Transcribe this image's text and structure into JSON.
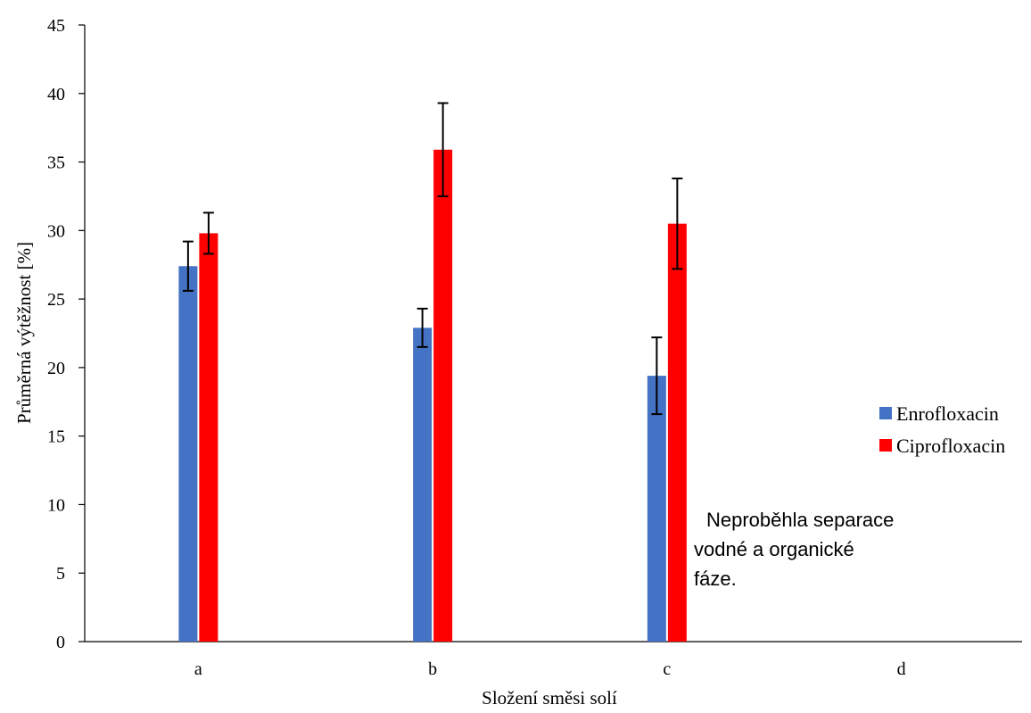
{
  "chart_data": {
    "type": "bar",
    "title": "",
    "xlabel": "Složení směsi solí",
    "ylabel": "Průměrná výtěžnost [%]",
    "ylim": [
      0,
      45
    ],
    "yticks": [
      0,
      5,
      10,
      15,
      20,
      25,
      30,
      35,
      40,
      45
    ],
    "categories": [
      "a",
      "b",
      "c",
      "d"
    ],
    "series": [
      {
        "name": "Enrofloxacin",
        "color": "#4472c4",
        "values": [
          27.4,
          22.9,
          19.4,
          0
        ],
        "errors": [
          1.8,
          1.4,
          2.8,
          0
        ]
      },
      {
        "name": "Ciprofloxacin",
        "color": "#ff0000",
        "values": [
          29.8,
          35.9,
          30.5,
          0
        ],
        "errors": [
          1.5,
          3.4,
          3.3,
          0
        ]
      }
    ],
    "grid": false,
    "legend": "right",
    "annotation": [
      "Neproběhla separace",
      "vodné a organické",
      "fáze."
    ]
  }
}
